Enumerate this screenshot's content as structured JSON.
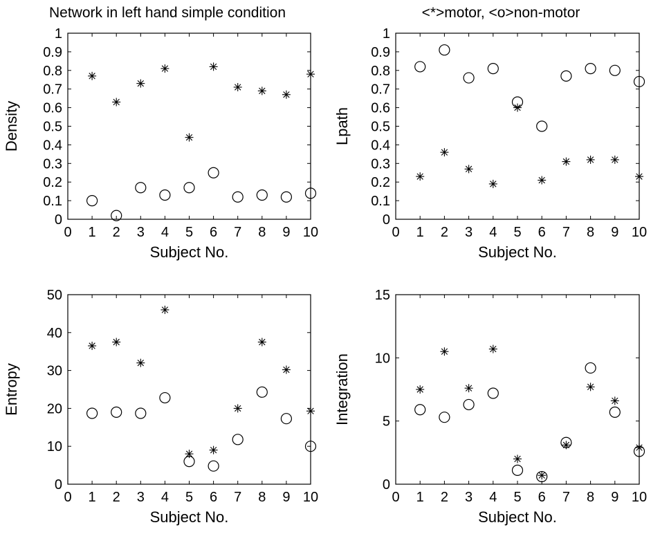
{
  "chart_data": [
    {
      "type": "scatter",
      "title": "Network in left hand simple condition",
      "xlabel": "Subject No.",
      "ylabel": "Density",
      "xlim": [
        0,
        10
      ],
      "ylim": [
        0,
        1
      ],
      "xticks": [
        "0",
        "1",
        "2",
        "3",
        "4",
        "5",
        "6",
        "7",
        "8",
        "9",
        "10"
      ],
      "yticks": [
        "0",
        "0.1",
        "0.2",
        "0.3",
        "0.4",
        "0.5",
        "0.6",
        "0.7",
        "0.8",
        "0.9",
        "1"
      ],
      "grid": false,
      "x": [
        1,
        2,
        3,
        4,
        5,
        6,
        7,
        8,
        9,
        10
      ],
      "series": [
        {
          "marker": "star",
          "values": [
            0.77,
            0.63,
            0.73,
            0.81,
            0.44,
            0.82,
            0.71,
            0.69,
            0.67,
            0.78
          ]
        },
        {
          "marker": "circle",
          "values": [
            0.1,
            0.02,
            0.17,
            0.13,
            0.17,
            0.25,
            0.12,
            0.13,
            0.12,
            0.14
          ]
        }
      ]
    },
    {
      "type": "scatter",
      "title": "<*>motor, <o>non-motor",
      "xlabel": "Subject No.",
      "ylabel": "Lpath",
      "xlim": [
        0,
        10
      ],
      "ylim": [
        0,
        1
      ],
      "xticks": [
        "0",
        "1",
        "2",
        "3",
        "4",
        "5",
        "6",
        "7",
        "8",
        "9",
        "10"
      ],
      "yticks": [
        "0",
        "0.1",
        "0.2",
        "0.3",
        "0.4",
        "0.5",
        "0.6",
        "0.7",
        "0.8",
        "0.9",
        "1"
      ],
      "grid": false,
      "x": [
        1,
        2,
        3,
        4,
        5,
        6,
        7,
        8,
        9,
        10
      ],
      "series": [
        {
          "marker": "star",
          "values": [
            0.23,
            0.36,
            0.27,
            0.19,
            0.6,
            0.21,
            0.31,
            0.32,
            0.32,
            0.23
          ]
        },
        {
          "marker": "circle",
          "values": [
            0.82,
            0.91,
            0.76,
            0.81,
            0.63,
            0.5,
            0.77,
            0.81,
            0.8,
            0.74
          ]
        }
      ]
    },
    {
      "type": "scatter",
      "title": "",
      "xlabel": "Subject No.",
      "ylabel": "Entropy",
      "xlim": [
        0,
        10
      ],
      "ylim": [
        0,
        50
      ],
      "xticks": [
        "0",
        "1",
        "2",
        "3",
        "4",
        "5",
        "6",
        "7",
        "8",
        "9",
        "10"
      ],
      "yticks": [
        "0",
        "10",
        "20",
        "30",
        "40",
        "50"
      ],
      "grid": false,
      "x": [
        1,
        2,
        3,
        4,
        5,
        6,
        7,
        8,
        9,
        10
      ],
      "series": [
        {
          "marker": "star",
          "values": [
            36.5,
            37.5,
            32.0,
            46.0,
            8.0,
            9.0,
            20.0,
            37.5,
            30.2,
            19.3
          ]
        },
        {
          "marker": "circle",
          "values": [
            18.7,
            19.0,
            18.7,
            22.8,
            6.0,
            4.8,
            11.8,
            24.3,
            17.3,
            10.0
          ]
        }
      ]
    },
    {
      "type": "scatter",
      "title": "",
      "xlabel": "Subject No.",
      "ylabel": "Integration",
      "xlim": [
        0,
        10
      ],
      "ylim": [
        0,
        15
      ],
      "xticks": [
        "0",
        "1",
        "2",
        "3",
        "4",
        "5",
        "6",
        "7",
        "8",
        "9",
        "10"
      ],
      "yticks": [
        "0",
        "5",
        "10",
        "15"
      ],
      "grid": false,
      "x": [
        1,
        2,
        3,
        4,
        5,
        6,
        7,
        8,
        9,
        10
      ],
      "series": [
        {
          "marker": "star",
          "values": [
            7.5,
            10.5,
            7.6,
            10.7,
            2.0,
            0.7,
            3.1,
            7.7,
            6.6,
            2.9
          ]
        },
        {
          "marker": "circle",
          "values": [
            5.9,
            5.3,
            6.3,
            7.2,
            1.1,
            0.6,
            3.3,
            9.2,
            5.7,
            2.6
          ]
        }
      ]
    }
  ]
}
